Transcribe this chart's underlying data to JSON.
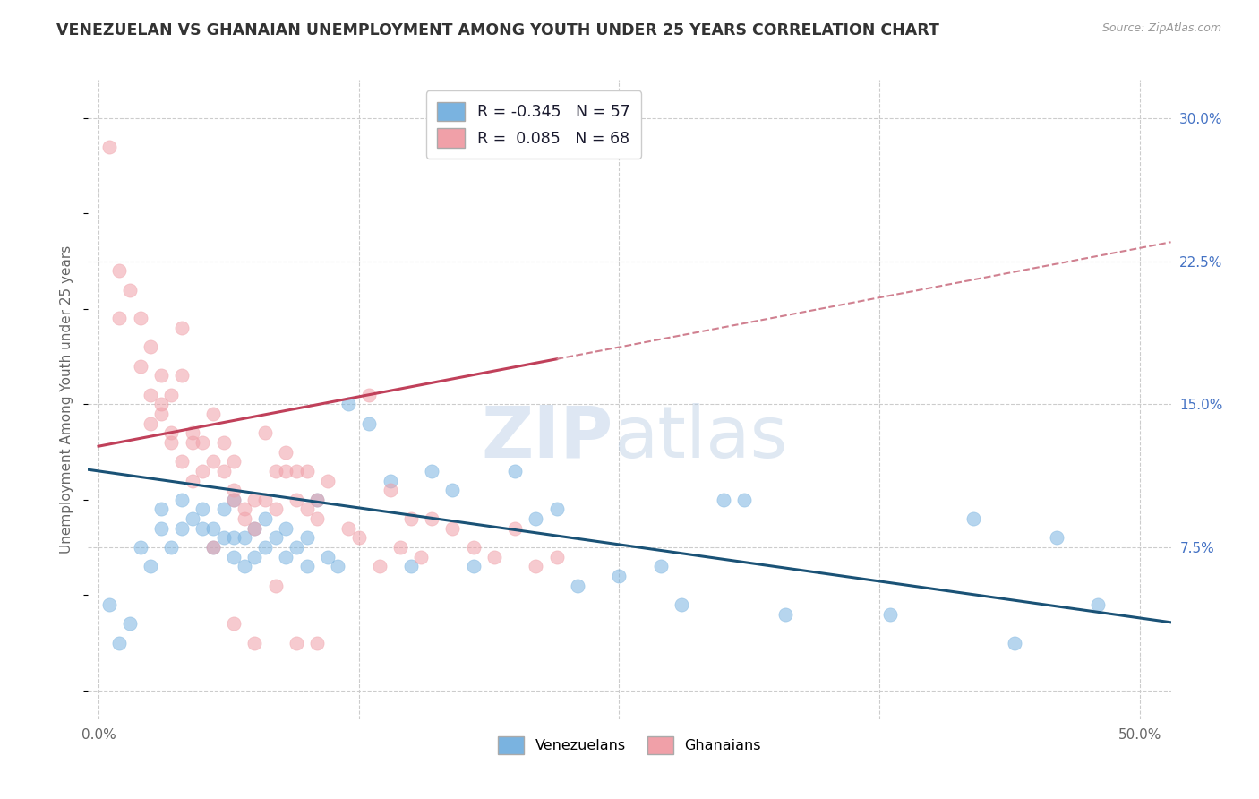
{
  "title": "VENEZUELAN VS GHANAIAN UNEMPLOYMENT AMONG YOUTH UNDER 25 YEARS CORRELATION CHART",
  "source": "Source: ZipAtlas.com",
  "ylabel": "Unemployment Among Youth under 25 years",
  "y_ticks": [
    0.0,
    0.075,
    0.15,
    0.225,
    0.3
  ],
  "y_tick_labels": [
    "",
    "7.5%",
    "15.0%",
    "22.5%",
    "30.0%"
  ],
  "x_ticks": [
    0.0,
    0.125,
    0.25,
    0.375,
    0.5
  ],
  "x_tick_labels": [
    "0.0%",
    "",
    "",
    "",
    "50.0%"
  ],
  "xlim": [
    -0.005,
    0.515
  ],
  "ylim": [
    -0.015,
    0.32
  ],
  "venezuelan_R": -0.345,
  "venezuelan_N": 57,
  "ghanaian_R": 0.085,
  "ghanaian_N": 68,
  "venezuelan_color": "#7ab3e0",
  "ghanaian_color": "#f0a0a8",
  "venezuelan_line_color": "#1a5276",
  "ghanaian_line_color": "#c0405a",
  "ghanaian_dash_color": "#d08090",
  "background_color": "#ffffff",
  "grid_color": "#cccccc",
  "watermark_zip": "ZIP",
  "watermark_atlas": "atlas",
  "venezuelan_x": [
    0.005,
    0.01,
    0.015,
    0.02,
    0.025,
    0.03,
    0.03,
    0.035,
    0.04,
    0.04,
    0.045,
    0.05,
    0.05,
    0.055,
    0.055,
    0.06,
    0.06,
    0.065,
    0.065,
    0.065,
    0.07,
    0.07,
    0.075,
    0.075,
    0.08,
    0.08,
    0.085,
    0.09,
    0.09,
    0.095,
    0.1,
    0.1,
    0.105,
    0.11,
    0.115,
    0.12,
    0.13,
    0.14,
    0.15,
    0.16,
    0.17,
    0.18,
    0.2,
    0.21,
    0.22,
    0.23,
    0.25,
    0.27,
    0.28,
    0.3,
    0.31,
    0.33,
    0.38,
    0.42,
    0.44,
    0.46,
    0.48
  ],
  "venezuelan_y": [
    0.045,
    0.025,
    0.035,
    0.075,
    0.065,
    0.085,
    0.095,
    0.075,
    0.085,
    0.1,
    0.09,
    0.085,
    0.095,
    0.085,
    0.075,
    0.08,
    0.095,
    0.07,
    0.08,
    0.1,
    0.065,
    0.08,
    0.07,
    0.085,
    0.075,
    0.09,
    0.08,
    0.07,
    0.085,
    0.075,
    0.065,
    0.08,
    0.1,
    0.07,
    0.065,
    0.15,
    0.14,
    0.11,
    0.065,
    0.115,
    0.105,
    0.065,
    0.115,
    0.09,
    0.095,
    0.055,
    0.06,
    0.065,
    0.045,
    0.1,
    0.1,
    0.04,
    0.04,
    0.09,
    0.025,
    0.08,
    0.045
  ],
  "ghanaian_x": [
    0.005,
    0.01,
    0.01,
    0.015,
    0.02,
    0.02,
    0.025,
    0.025,
    0.03,
    0.03,
    0.035,
    0.035,
    0.04,
    0.04,
    0.045,
    0.045,
    0.05,
    0.05,
    0.055,
    0.055,
    0.06,
    0.06,
    0.065,
    0.065,
    0.065,
    0.07,
    0.07,
    0.075,
    0.075,
    0.08,
    0.08,
    0.085,
    0.085,
    0.09,
    0.09,
    0.095,
    0.095,
    0.1,
    0.1,
    0.105,
    0.105,
    0.11,
    0.12,
    0.125,
    0.13,
    0.135,
    0.14,
    0.145,
    0.15,
    0.155,
    0.16,
    0.17,
    0.18,
    0.19,
    0.2,
    0.21,
    0.22,
    0.025,
    0.03,
    0.035,
    0.04,
    0.045,
    0.055,
    0.065,
    0.075,
    0.085,
    0.095,
    0.105
  ],
  "ghanaian_y": [
    0.285,
    0.22,
    0.195,
    0.21,
    0.195,
    0.17,
    0.18,
    0.155,
    0.165,
    0.145,
    0.155,
    0.13,
    0.165,
    0.12,
    0.13,
    0.11,
    0.13,
    0.115,
    0.12,
    0.145,
    0.115,
    0.13,
    0.1,
    0.105,
    0.12,
    0.09,
    0.095,
    0.085,
    0.1,
    0.1,
    0.135,
    0.095,
    0.115,
    0.125,
    0.115,
    0.115,
    0.1,
    0.095,
    0.115,
    0.1,
    0.09,
    0.11,
    0.085,
    0.08,
    0.155,
    0.065,
    0.105,
    0.075,
    0.09,
    0.07,
    0.09,
    0.085,
    0.075,
    0.07,
    0.085,
    0.065,
    0.07,
    0.14,
    0.15,
    0.135,
    0.19,
    0.135,
    0.075,
    0.035,
    0.025,
    0.055,
    0.025,
    0.025
  ]
}
